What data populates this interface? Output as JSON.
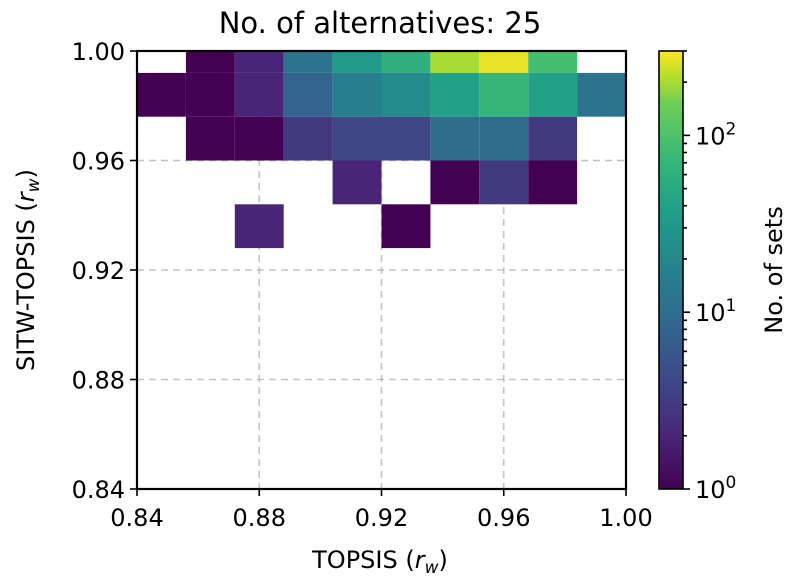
{
  "chart_data": {
    "type": "heatmap",
    "title": "No. of alternatives: 25",
    "xlabel": "TOPSIS (r_w)",
    "ylabel": "SITW-TOPSIS (r_w)",
    "xlabel_main": "TOPSIS (",
    "xlabel_var": "r",
    "xlabel_sub": "w",
    "xlabel_close": ")",
    "ylabel_main": "SITW-TOPSIS (",
    "ylabel_var": "r",
    "ylabel_sub": "w",
    "ylabel_close": ")",
    "xlim": [
      0.84,
      1.0
    ],
    "ylim": [
      0.84,
      1.0
    ],
    "x_ticks": [
      "0.84",
      "0.88",
      "0.92",
      "0.96",
      "1.00"
    ],
    "y_ticks": [
      "0.84",
      "0.88",
      "0.92",
      "0.96",
      "1.00"
    ],
    "grid": true,
    "bin_width": 0.016,
    "colormap": "viridis",
    "color_scale": "log",
    "color_range": [
      1,
      300
    ],
    "colorbar": {
      "label": "No. of sets",
      "ticks": [
        {
          "value": 1,
          "base": "10",
          "exp": "0"
        },
        {
          "value": 10,
          "base": "10",
          "exp": "1"
        },
        {
          "value": 100,
          "base": "10",
          "exp": "2"
        }
      ]
    },
    "cells": [
      {
        "x": 0.856,
        "y": 0.992,
        "count": 1
      },
      {
        "x": 0.872,
        "y": 0.992,
        "count": 2
      },
      {
        "x": 0.888,
        "y": 0.992,
        "count": 12
      },
      {
        "x": 0.904,
        "y": 0.992,
        "count": 33
      },
      {
        "x": 0.92,
        "y": 0.992,
        "count": 60
      },
      {
        "x": 0.936,
        "y": 0.992,
        "count": 200
      },
      {
        "x": 0.952,
        "y": 0.992,
        "count": 270
      },
      {
        "x": 0.968,
        "y": 0.992,
        "count": 90
      },
      {
        "x": 0.84,
        "y": 0.976,
        "count": 1
      },
      {
        "x": 0.856,
        "y": 0.976,
        "count": 1
      },
      {
        "x": 0.872,
        "y": 0.976,
        "count": 2
      },
      {
        "x": 0.888,
        "y": 0.976,
        "count": 8
      },
      {
        "x": 0.904,
        "y": 0.976,
        "count": 16
      },
      {
        "x": 0.92,
        "y": 0.976,
        "count": 22
      },
      {
        "x": 0.936,
        "y": 0.976,
        "count": 40
      },
      {
        "x": 0.952,
        "y": 0.976,
        "count": 70
      },
      {
        "x": 0.968,
        "y": 0.976,
        "count": 40
      },
      {
        "x": 0.984,
        "y": 0.976,
        "count": 12
      },
      {
        "x": 0.856,
        "y": 0.96,
        "count": 1
      },
      {
        "x": 0.872,
        "y": 0.96,
        "count": 1
      },
      {
        "x": 0.888,
        "y": 0.96,
        "count": 3
      },
      {
        "x": 0.904,
        "y": 0.96,
        "count": 4
      },
      {
        "x": 0.92,
        "y": 0.96,
        "count": 4
      },
      {
        "x": 0.936,
        "y": 0.96,
        "count": 10
      },
      {
        "x": 0.952,
        "y": 0.96,
        "count": 10
      },
      {
        "x": 0.968,
        "y": 0.96,
        "count": 3
      },
      {
        "x": 0.904,
        "y": 0.944,
        "count": 2
      },
      {
        "x": 0.936,
        "y": 0.944,
        "count": 1
      },
      {
        "x": 0.952,
        "y": 0.944,
        "count": 3
      },
      {
        "x": 0.968,
        "y": 0.944,
        "count": 1
      },
      {
        "x": 0.872,
        "y": 0.928,
        "count": 2
      },
      {
        "x": 0.92,
        "y": 0.928,
        "count": 1
      }
    ]
  }
}
